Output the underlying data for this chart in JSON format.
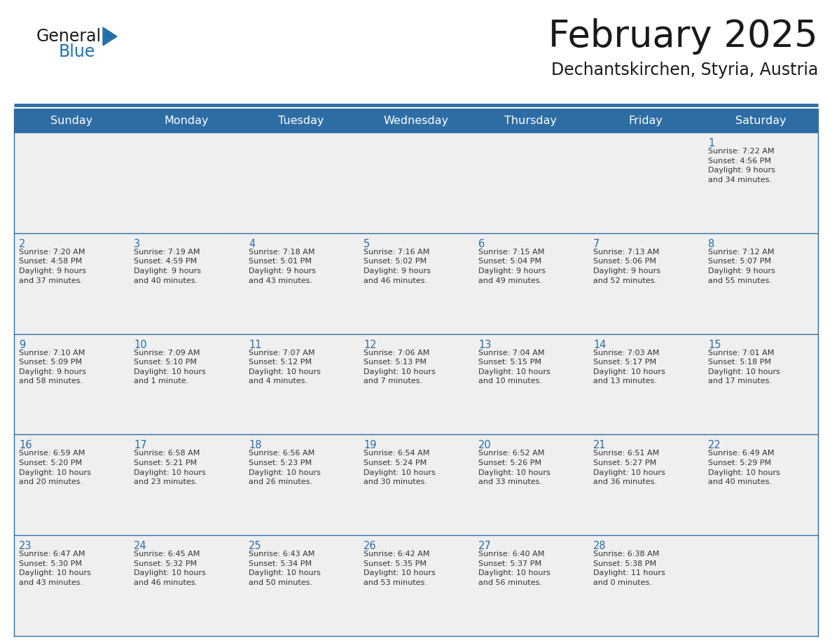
{
  "title": "February 2025",
  "subtitle": "Dechantskirchen, Styria, Austria",
  "days_of_week": [
    "Sunday",
    "Monday",
    "Tuesday",
    "Wednesday",
    "Thursday",
    "Friday",
    "Saturday"
  ],
  "header_bg": "#2E6DA4",
  "header_text": "#FFFFFF",
  "cell_bg": "#EFEFEF",
  "border_color": "#2E6DA4",
  "row_line_color": "#2E6DA4",
  "day_num_color": "#2E6DA4",
  "text_color": "#333333",
  "title_color": "#1a1a1a",
  "logo_general_color": "#1a1a1a",
  "logo_blue_color": "#2471A8",
  "logo_triangle_color": "#2471A8",
  "weeks": [
    [
      {
        "day": null,
        "info": null
      },
      {
        "day": null,
        "info": null
      },
      {
        "day": null,
        "info": null
      },
      {
        "day": null,
        "info": null
      },
      {
        "day": null,
        "info": null
      },
      {
        "day": null,
        "info": null
      },
      {
        "day": 1,
        "info": "Sunrise: 7:22 AM\nSunset: 4:56 PM\nDaylight: 9 hours\nand 34 minutes."
      }
    ],
    [
      {
        "day": 2,
        "info": "Sunrise: 7:20 AM\nSunset: 4:58 PM\nDaylight: 9 hours\nand 37 minutes."
      },
      {
        "day": 3,
        "info": "Sunrise: 7:19 AM\nSunset: 4:59 PM\nDaylight: 9 hours\nand 40 minutes."
      },
      {
        "day": 4,
        "info": "Sunrise: 7:18 AM\nSunset: 5:01 PM\nDaylight: 9 hours\nand 43 minutes."
      },
      {
        "day": 5,
        "info": "Sunrise: 7:16 AM\nSunset: 5:02 PM\nDaylight: 9 hours\nand 46 minutes."
      },
      {
        "day": 6,
        "info": "Sunrise: 7:15 AM\nSunset: 5:04 PM\nDaylight: 9 hours\nand 49 minutes."
      },
      {
        "day": 7,
        "info": "Sunrise: 7:13 AM\nSunset: 5:06 PM\nDaylight: 9 hours\nand 52 minutes."
      },
      {
        "day": 8,
        "info": "Sunrise: 7:12 AM\nSunset: 5:07 PM\nDaylight: 9 hours\nand 55 minutes."
      }
    ],
    [
      {
        "day": 9,
        "info": "Sunrise: 7:10 AM\nSunset: 5:09 PM\nDaylight: 9 hours\nand 58 minutes."
      },
      {
        "day": 10,
        "info": "Sunrise: 7:09 AM\nSunset: 5:10 PM\nDaylight: 10 hours\nand 1 minute."
      },
      {
        "day": 11,
        "info": "Sunrise: 7:07 AM\nSunset: 5:12 PM\nDaylight: 10 hours\nand 4 minutes."
      },
      {
        "day": 12,
        "info": "Sunrise: 7:06 AM\nSunset: 5:13 PM\nDaylight: 10 hours\nand 7 minutes."
      },
      {
        "day": 13,
        "info": "Sunrise: 7:04 AM\nSunset: 5:15 PM\nDaylight: 10 hours\nand 10 minutes."
      },
      {
        "day": 14,
        "info": "Sunrise: 7:03 AM\nSunset: 5:17 PM\nDaylight: 10 hours\nand 13 minutes."
      },
      {
        "day": 15,
        "info": "Sunrise: 7:01 AM\nSunset: 5:18 PM\nDaylight: 10 hours\nand 17 minutes."
      }
    ],
    [
      {
        "day": 16,
        "info": "Sunrise: 6:59 AM\nSunset: 5:20 PM\nDaylight: 10 hours\nand 20 minutes."
      },
      {
        "day": 17,
        "info": "Sunrise: 6:58 AM\nSunset: 5:21 PM\nDaylight: 10 hours\nand 23 minutes."
      },
      {
        "day": 18,
        "info": "Sunrise: 6:56 AM\nSunset: 5:23 PM\nDaylight: 10 hours\nand 26 minutes."
      },
      {
        "day": 19,
        "info": "Sunrise: 6:54 AM\nSunset: 5:24 PM\nDaylight: 10 hours\nand 30 minutes."
      },
      {
        "day": 20,
        "info": "Sunrise: 6:52 AM\nSunset: 5:26 PM\nDaylight: 10 hours\nand 33 minutes."
      },
      {
        "day": 21,
        "info": "Sunrise: 6:51 AM\nSunset: 5:27 PM\nDaylight: 10 hours\nand 36 minutes."
      },
      {
        "day": 22,
        "info": "Sunrise: 6:49 AM\nSunset: 5:29 PM\nDaylight: 10 hours\nand 40 minutes."
      }
    ],
    [
      {
        "day": 23,
        "info": "Sunrise: 6:47 AM\nSunset: 5:30 PM\nDaylight: 10 hours\nand 43 minutes."
      },
      {
        "day": 24,
        "info": "Sunrise: 6:45 AM\nSunset: 5:32 PM\nDaylight: 10 hours\nand 46 minutes."
      },
      {
        "day": 25,
        "info": "Sunrise: 6:43 AM\nSunset: 5:34 PM\nDaylight: 10 hours\nand 50 minutes."
      },
      {
        "day": 26,
        "info": "Sunrise: 6:42 AM\nSunset: 5:35 PM\nDaylight: 10 hours\nand 53 minutes."
      },
      {
        "day": 27,
        "info": "Sunrise: 6:40 AM\nSunset: 5:37 PM\nDaylight: 10 hours\nand 56 minutes."
      },
      {
        "day": 28,
        "info": "Sunrise: 6:38 AM\nSunset: 5:38 PM\nDaylight: 11 hours\nand 0 minutes."
      },
      {
        "day": null,
        "info": null
      }
    ]
  ]
}
